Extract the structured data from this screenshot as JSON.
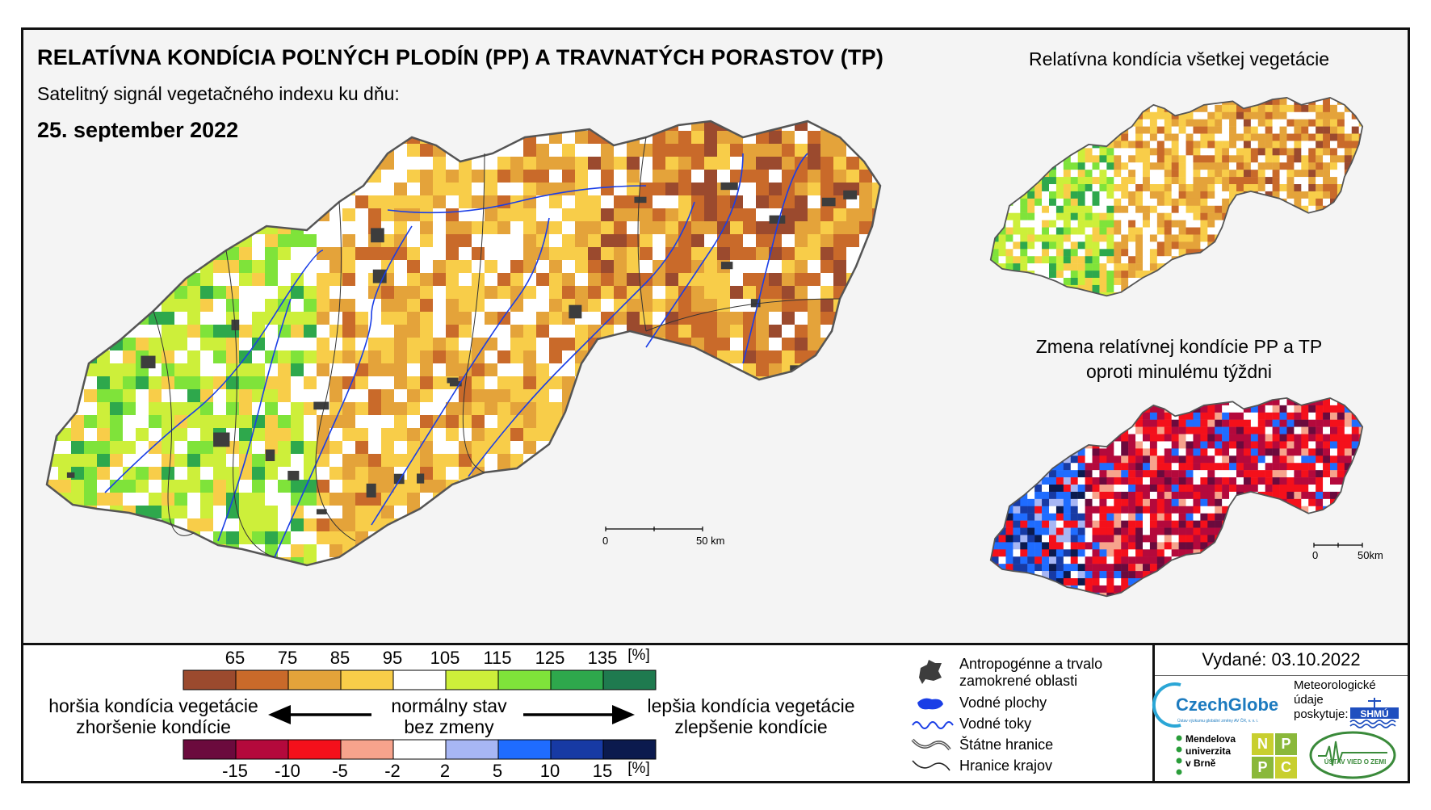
{
  "main": {
    "title": "RELATÍVNA KONDÍCIA POĽNÝCH PLODÍN (PP) A TRAVNATÝCH PORASTOV (TP)",
    "subtitle": "Satelitný signál vegetačného indexu ku dňu:",
    "date": "25. september 2022",
    "scale_start": "0",
    "scale_end": "50 km"
  },
  "inset_top": {
    "title": "Relatívna kondícia všetkej vegetácie"
  },
  "inset_bottom": {
    "title_line1": "Zmena relatívnej kondície PP a TP",
    "title_line2": "oproti minulému týždni",
    "scale_start": "0",
    "scale_end": "50km"
  },
  "legend_condition": {
    "ticks": [
      "65",
      "75",
      "85",
      "95",
      "105",
      "115",
      "125",
      "135"
    ],
    "unit": "[%]",
    "colors": [
      "#9b4a2e",
      "#c96a2a",
      "#e4a33a",
      "#f8cd49",
      "#ffffff",
      "#cdef3a",
      "#7fe33a",
      "#2ea84c",
      "#1f7a4f"
    ]
  },
  "legend_change": {
    "ticks": [
      "-15",
      "-10",
      "-5",
      "-2",
      "2",
      "5",
      "10",
      "15"
    ],
    "unit": "[%]",
    "colors": [
      "#6b0a3d",
      "#b4093c",
      "#f4101b",
      "#f7a38c",
      "#ffffff",
      "#a7b6f4",
      "#1f6cff",
      "#173aa4",
      "#0b1a4e"
    ]
  },
  "legend_arrows": {
    "worse_1": "horšia kondícia vegetácie",
    "worse_2": "zhoršenie kondície",
    "normal_1": "normálny stav",
    "normal_2": "bez zmeny",
    "better_1": "lepšia kondícia vegetácie",
    "better_2": "zlepšenie kondície"
  },
  "legend_symbols": {
    "urban": "Antropogénne a trvalo zamokrené oblasti",
    "urban_line1": "Antropogénne a trvalo",
    "urban_line2": "zamokrené oblasti",
    "water_bodies": "Vodné plochy",
    "rivers": "Vodné toky",
    "state_border": "Štátne hranice",
    "region_border": "Hranice krajov",
    "urban_color": "#3d3d3d",
    "water_color": "#1a3ee6"
  },
  "issuer": {
    "issued": "Vydané: 03.10.2022",
    "czechglobe": "CzechGlobe",
    "czechglobe_sub": "Ústav výzkumu globální změny AV ČR, v. v. i.",
    "meteo_1": "Meteorologické",
    "meteo_2": "údaje",
    "meteo_3": "poskytuje:",
    "shmu": "SHMÚ",
    "mendel_1": "Mendelova",
    "mendel_2": "univerzita",
    "mendel_3": "v Brně",
    "nppc": [
      "N",
      "P",
      "P",
      "C"
    ],
    "uvz": "ÚSTAV VIED O ZEMI"
  }
}
